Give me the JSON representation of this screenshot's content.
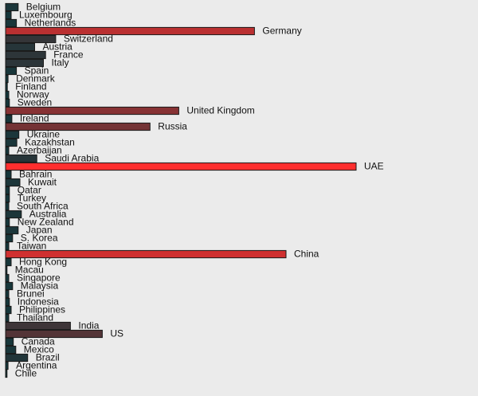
{
  "chart_data": {
    "type": "bar",
    "orientation": "horizontal",
    "title": "",
    "xlabel": "",
    "ylabel": "",
    "axis_labels_shown": false,
    "grid": false,
    "legend": "none",
    "xlim": [
      0,
      1000
    ],
    "bar_color_low": "#12363a",
    "bar_color_high": "#ff2e2e",
    "categories": [
      "Belgium",
      "Luxembourg",
      "Netherlands",
      "Germany",
      "Switzerland",
      "Austria",
      "France",
      "Italy",
      "Spain",
      "Denmark",
      "Finland",
      "Norway",
      "Sweden",
      "United Kingdom",
      "Ireland",
      "Russia",
      "Ukraine",
      "Kazakhstan",
      "Azerbaijan",
      "Saudi Arabia",
      "UAE",
      "Bahrain",
      "Kuwait",
      "Qatar",
      "Turkey",
      "South Africa",
      "Australia",
      "New Zealand",
      "Japan",
      "S. Korea",
      "Taiwan",
      "China",
      "Hong Kong",
      "Macau",
      "Singapore",
      "Malaysia",
      "Brunei",
      "Indonesia",
      "Philippines",
      "Thailand",
      "India",
      "US",
      "Canada",
      "Mexico",
      "Brazil",
      "Argentina",
      "Chile"
    ],
    "values": [
      36,
      16,
      31,
      710,
      143,
      83,
      114,
      108,
      31,
      7,
      5,
      9,
      11,
      494,
      18,
      412,
      38,
      32,
      9,
      89,
      1000,
      16,
      41,
      11,
      11,
      9,
      45,
      11,
      36,
      20,
      9,
      800,
      16,
      4,
      9,
      20,
      9,
      11,
      16,
      9,
      185,
      276,
      22,
      29,
      63,
      7,
      4
    ]
  }
}
